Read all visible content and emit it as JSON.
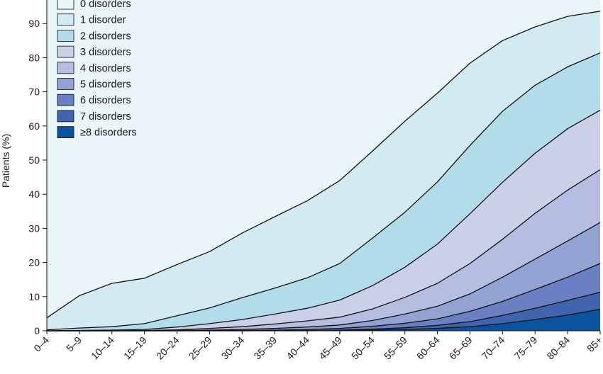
{
  "chart_data": {
    "type": "area",
    "stacked": true,
    "title": "",
    "xlabel": "",
    "ylabel": "Patients (%)",
    "ylim": [
      0,
      100
    ],
    "yticks": [
      0,
      10,
      20,
      30,
      40,
      50,
      60,
      70,
      80,
      90
    ],
    "categories": [
      "0–4",
      "5–9",
      "10–14",
      "15–19",
      "20–24",
      "25–29",
      "30–34",
      "35–39",
      "40–44",
      "45–49",
      "50–54",
      "55–59",
      "60–64",
      "65–69",
      "70–74",
      "75–79",
      "80–84",
      "85+"
    ],
    "series": [
      {
        "name": "0 disorders",
        "color": "#e9f5f9",
        "cumulative_upper": [
          100,
          100,
          100,
          100,
          100,
          100,
          100,
          100,
          100,
          100,
          100,
          100,
          100,
          100,
          100,
          100,
          100,
          100
        ]
      },
      {
        "name": "1 disorder",
        "color": "#d2eaf1",
        "cumulative_upper": [
          3.8,
          10.3,
          13.9,
          15.4,
          19.4,
          23.2,
          28.6,
          33.4,
          38.1,
          44,
          52.6,
          61.4,
          69.6,
          78.4,
          85,
          89,
          92.1,
          93.6
        ]
      },
      {
        "name": "2 disorders",
        "color": "#b3dcea",
        "cumulative_upper": [
          0.3,
          0.8,
          1.2,
          2.1,
          4.4,
          6.7,
          9.7,
          12.5,
          15.5,
          19.7,
          27.1,
          34.7,
          43.6,
          54.3,
          64.3,
          71.9,
          77.3,
          81.4
        ]
      },
      {
        "name": "3 disorders",
        "color": "#cccfe8",
        "cumulative_upper": [
          0,
          0.1,
          0.2,
          0.4,
          1.1,
          2.1,
          3.3,
          4.9,
          6.6,
          9,
          13.2,
          18.6,
          25.4,
          34.3,
          43.5,
          52,
          59.2,
          64.6
        ]
      },
      {
        "name": "4 disorders",
        "color": "#b5bde0",
        "cumulative_upper": [
          0,
          0,
          0,
          0.1,
          0.3,
          0.7,
          1.2,
          2,
          2.9,
          4,
          6.4,
          9.8,
          13.9,
          19.7,
          26.8,
          34.4,
          41.2,
          47.2
        ]
      },
      {
        "name": "5 disorders",
        "color": "#91a2d3",
        "cumulative_upper": [
          0,
          0,
          0,
          0,
          0.1,
          0.2,
          0.4,
          0.7,
          1.1,
          1.7,
          3,
          4.9,
          7.2,
          10.8,
          15.7,
          21,
          26.3,
          31.7
        ]
      },
      {
        "name": "6 disorders",
        "color": "#6a80c2",
        "cumulative_upper": [
          0,
          0,
          0,
          0,
          0,
          0.1,
          0.1,
          0.2,
          0.4,
          0.7,
          1.3,
          2.2,
          3.5,
          5.7,
          8.6,
          12.1,
          15.7,
          19.7
        ]
      },
      {
        "name": "7 disorders",
        "color": "#4164ae",
        "cumulative_upper": [
          0,
          0,
          0,
          0,
          0,
          0,
          0,
          0.1,
          0.1,
          0.2,
          0.5,
          0.9,
          1.6,
          2.7,
          4.5,
          6.6,
          8.9,
          11.3
        ]
      },
      {
        "name": "≥8 disorders",
        "color": "#0b53a0",
        "cumulative_upper": [
          0,
          0,
          0,
          0,
          0,
          0,
          0,
          0,
          0,
          0.1,
          0.2,
          0.4,
          0.7,
          1.2,
          2.1,
          3.3,
          4.6,
          6.3
        ]
      }
    ],
    "legend_position": "top-left",
    "grid": false
  }
}
